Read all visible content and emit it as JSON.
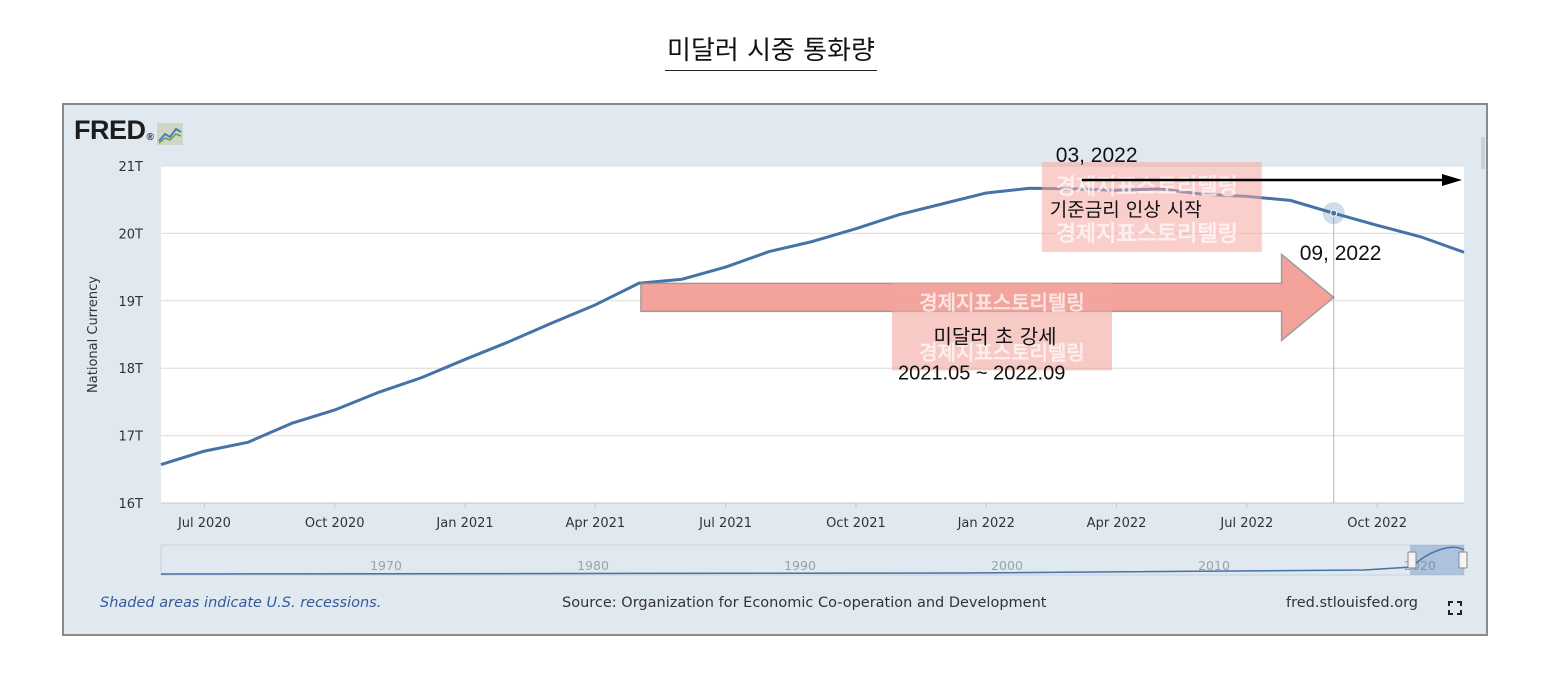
{
  "page": {
    "title": "미달러 시중 통화량"
  },
  "logo": {
    "text": "FRED",
    "dot": "®"
  },
  "chart_data": {
    "type": "line",
    "ylabel": "National Currency",
    "ylim": [
      16,
      21
    ],
    "y_ticks": [
      16,
      17,
      18,
      19,
      20,
      21
    ],
    "y_tick_labels": [
      "16T",
      "17T",
      "18T",
      "19T",
      "20T",
      "21T"
    ],
    "x_tick_labels": [
      "Jul 2020",
      "Oct 2020",
      "Jan 2021",
      "Apr 2021",
      "Jul 2021",
      "Oct 2021",
      "Jan 2022",
      "Apr 2022",
      "Jul 2022",
      "Oct 2022"
    ],
    "x_tick_index": [
      1,
      4,
      7,
      10,
      13,
      16,
      19,
      22,
      25,
      28
    ],
    "x_range_index": [
      0,
      30
    ],
    "series": [
      {
        "name": "National Currency",
        "color": "#4572a7",
        "dates": [
          "2020-06",
          "2020-07",
          "2020-08",
          "2020-09",
          "2020-10",
          "2020-11",
          "2020-12",
          "2021-01",
          "2021-02",
          "2021-03",
          "2021-04",
          "2021-05",
          "2021-06",
          "2021-07",
          "2021-08",
          "2021-09",
          "2021-10",
          "2021-11",
          "2021-12",
          "2022-01",
          "2022-02",
          "2022-03",
          "2022-04",
          "2022-05",
          "2022-06",
          "2022-07",
          "2022-08",
          "2022-09",
          "2022-10",
          "2022-11",
          "2022-12"
        ],
        "values": [
          16.57,
          16.77,
          16.9,
          17.18,
          17.38,
          17.64,
          17.86,
          18.13,
          18.39,
          18.67,
          18.94,
          19.26,
          19.32,
          19.5,
          19.73,
          19.88,
          20.07,
          20.28,
          20.44,
          20.6,
          20.67,
          20.66,
          20.64,
          20.66,
          20.58,
          20.55,
          20.49,
          20.3,
          20.12,
          19.95,
          19.72
        ]
      }
    ],
    "highlight_index": 27,
    "navigator_labels": [
      "1970",
      "1980",
      "1990",
      "2000",
      "2010",
      "2020"
    ],
    "annotations": {
      "start_label": "03, 2022",
      "event_label": "기준금리 인상 시작",
      "end_label": "09, 2022",
      "trend_label": "미달러 초 강세",
      "period_label": "2021.05 ~ 2022.09",
      "watermark": "경제지표스토리텔링"
    }
  },
  "footer": {
    "recession_note": "Shaded areas indicate U.S. recessions.",
    "source": "Source: Organization for Economic Co-operation and Development",
    "site": "fred.stlouisfed.org"
  },
  "icons": {
    "fullscreen": "fullscreen-icon",
    "logo_graph": "fred-graph-icon"
  }
}
